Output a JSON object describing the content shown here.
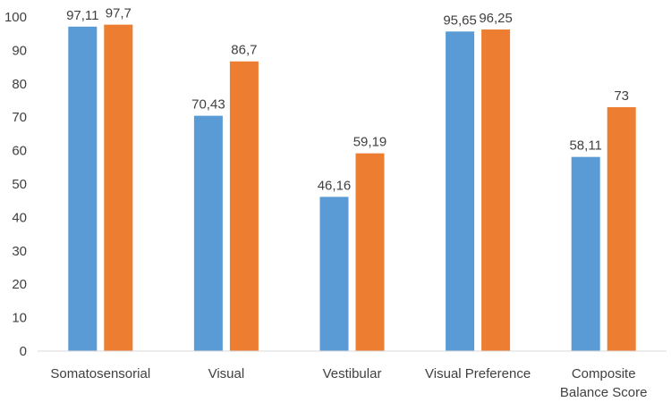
{
  "chart_data": {
    "type": "bar",
    "categories": [
      [
        "Somatosensorial"
      ],
      [
        "Visual"
      ],
      [
        "Vestibular"
      ],
      [
        "Visual Preference"
      ],
      [
        "Composite",
        "Balance Score"
      ]
    ],
    "series": [
      {
        "color": "#5B9BD5",
        "values": [
          97.11,
          70.43,
          46.16,
          95.65,
          58.11
        ],
        "labels": [
          "97,11",
          "70,43",
          "46,16",
          "95,65",
          "58,11"
        ]
      },
      {
        "color": "#ED7D31",
        "values": [
          97.7,
          86.7,
          59.19,
          96.25,
          73
        ],
        "labels": [
          "97,7",
          "86,7",
          "59,19",
          "96,25",
          "73"
        ]
      }
    ],
    "ylim": [
      0,
      100
    ],
    "yticks": [
      0,
      10,
      20,
      30,
      40,
      50,
      60,
      70,
      80,
      90,
      100
    ],
    "grid": false,
    "legend": "none",
    "title": "",
    "xlabel": "",
    "ylabel": ""
  }
}
